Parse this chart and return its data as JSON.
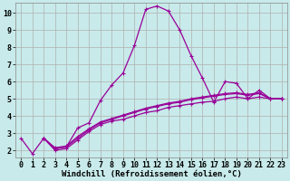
{
  "background_color": "#c8eaea",
  "line_color": "#990099",
  "marker": "+",
  "markersize": 3,
  "linewidth": 0.9,
  "xlabel": "Windchill (Refroidissement éolien,°C)",
  "xlabel_fontsize": 6.5,
  "tick_fontsize": 6,
  "xlim": [
    -0.5,
    23.5
  ],
  "ylim": [
    1.6,
    10.6
  ],
  "yticks": [
    2,
    3,
    4,
    5,
    6,
    7,
    8,
    9,
    10
  ],
  "xticks": [
    0,
    1,
    2,
    3,
    4,
    5,
    6,
    7,
    8,
    9,
    10,
    11,
    12,
    13,
    14,
    15,
    16,
    17,
    18,
    19,
    20,
    21,
    22,
    23
  ],
  "grid_color": "#b0b0b0",
  "series": [
    {
      "x": [
        0,
        1,
        2,
        3,
        4,
        5,
        6,
        7,
        8,
        9,
        10,
        11,
        12,
        13,
        14,
        15,
        16,
        17,
        18,
        19,
        20,
        21,
        22,
        23
      ],
      "y": [
        2.7,
        1.8,
        2.7,
        2.1,
        2.2,
        3.3,
        3.6,
        4.9,
        5.8,
        6.5,
        8.1,
        10.2,
        10.4,
        10.1,
        9.0,
        7.5,
        6.2,
        4.8,
        6.0,
        5.9,
        5.0,
        5.5,
        5.0,
        5.0
      ]
    },
    {
      "x": [
        2,
        3,
        4,
        5,
        6,
        7,
        8,
        9,
        10,
        11,
        12,
        13,
        14,
        15,
        16,
        17,
        18,
        19,
        20,
        21,
        22,
        23
      ],
      "y": [
        2.7,
        2.0,
        2.1,
        2.6,
        3.1,
        3.5,
        3.7,
        3.8,
        4.0,
        4.2,
        4.3,
        4.5,
        4.6,
        4.7,
        4.8,
        4.85,
        5.0,
        5.1,
        5.0,
        5.1,
        5.0,
        5.0
      ]
    },
    {
      "x": [
        2,
        3,
        4,
        5,
        6,
        7,
        8,
        9,
        10,
        11,
        12,
        13,
        14,
        15,
        16,
        17,
        18,
        19,
        20,
        21,
        22,
        23
      ],
      "y": [
        2.7,
        2.1,
        2.2,
        2.7,
        3.2,
        3.6,
        3.8,
        4.0,
        4.2,
        4.4,
        4.55,
        4.7,
        4.8,
        4.95,
        5.05,
        5.15,
        5.25,
        5.3,
        5.2,
        5.3,
        5.0,
        5.0
      ]
    },
    {
      "x": [
        2,
        3,
        4,
        5,
        6,
        7,
        8,
        9,
        10,
        11,
        12,
        13,
        14,
        15,
        16,
        17,
        18,
        19,
        20,
        21,
        22,
        23
      ],
      "y": [
        2.7,
        2.15,
        2.25,
        2.8,
        3.25,
        3.65,
        3.85,
        4.05,
        4.25,
        4.45,
        4.6,
        4.75,
        4.85,
        5.0,
        5.1,
        5.2,
        5.3,
        5.35,
        5.25,
        5.35,
        5.0,
        5.0
      ]
    }
  ]
}
